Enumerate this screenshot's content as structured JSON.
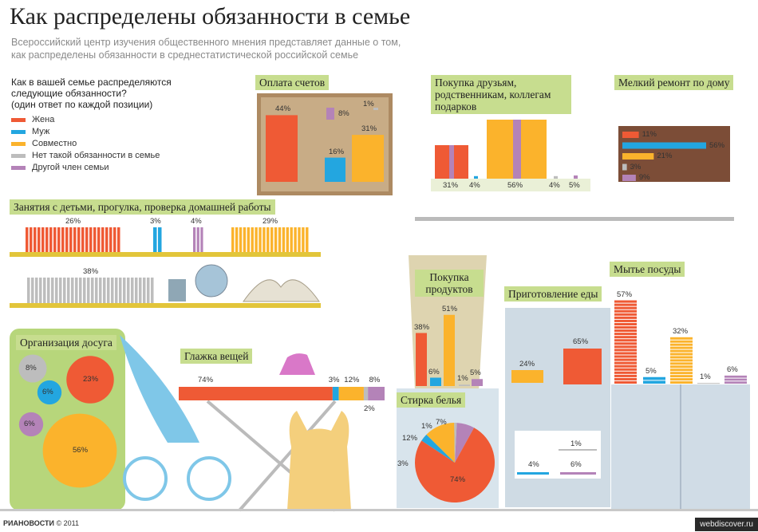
{
  "header": {
    "title": "Как распределены обязанности в семье",
    "subtitle_1": "Всероссийский центр изучения общественного мнения представляет данные о том,",
    "subtitle_2": "как распределены обязанности в среднестатистической российской семье"
  },
  "question": {
    "line1": "Как в вашей семье распределяются",
    "line2": "следующие обязанности?",
    "line3": "(один ответ по каждой позиции)"
  },
  "legend": [
    {
      "label": "Жена",
      "color": "#ef5a35"
    },
    {
      "label": "Муж",
      "color": "#23a6e0"
    },
    {
      "label": "Совместно",
      "color": "#fbb32c"
    },
    {
      "label": "Нет такой обязанности в семье",
      "color": "#bdbdbd"
    },
    {
      "label": "Другой член семьи",
      "color": "#b483b8"
    }
  ],
  "chart_data": [
    {
      "type": "bar",
      "title": "Оплата счетов",
      "series": [
        {
          "name": "Жена",
          "value": 44
        },
        {
          "name": "Муж",
          "value": 16
        },
        {
          "name": "Совместно",
          "value": 31
        },
        {
          "name": "Нет такой обязанности в семье",
          "value": 1
        },
        {
          "name": "Другой член семьи",
          "value": 8
        }
      ],
      "labels": [
        "44%",
        "16%",
        "31%",
        "1%",
        "8%"
      ]
    },
    {
      "type": "bar",
      "title": "Покупка друзьям, родственникам, коллегам подарков",
      "series": [
        {
          "name": "Жена",
          "value": 31
        },
        {
          "name": "Муж",
          "value": 4
        },
        {
          "name": "Совместно",
          "value": 56
        },
        {
          "name": "Нет такой обязанности в семье",
          "value": 4
        },
        {
          "name": "Другой член семьи",
          "value": 5
        }
      ],
      "labels": [
        "31%",
        "4%",
        "56%",
        "4%",
        "5%"
      ]
    },
    {
      "type": "bar",
      "title": "Мелкий ремонт по дому",
      "series": [
        {
          "name": "Жена",
          "value": 11
        },
        {
          "name": "Муж",
          "value": 56
        },
        {
          "name": "Совместно",
          "value": 21
        },
        {
          "name": "Нет такой обязанности в семье",
          "value": 3
        },
        {
          "name": "Другой член семьи",
          "value": 9
        }
      ],
      "labels": [
        "11%",
        "56%",
        "21%",
        "3%",
        "9%"
      ]
    },
    {
      "type": "bar",
      "title": "Занятия с детьми, прогулка, проверка домашней работы",
      "series": [
        {
          "name": "Жена",
          "value": 26
        },
        {
          "name": "Муж",
          "value": 3
        },
        {
          "name": "Другой член семьи",
          "value": 4
        },
        {
          "name": "Совместно",
          "value": 29
        },
        {
          "name": "Нет такой обязанности в семье",
          "value": 38
        }
      ],
      "labels": [
        "26%",
        "3%",
        "4%",
        "29%",
        "38%"
      ]
    },
    {
      "type": "pie",
      "title": "Организация досуга",
      "series": [
        {
          "name": "Жена",
          "value": 23
        },
        {
          "name": "Муж",
          "value": 6
        },
        {
          "name": "Совместно",
          "value": 56
        },
        {
          "name": "Нет такой обязанности в семье",
          "value": 8
        },
        {
          "name": "Другой член семьи",
          "value": 6
        }
      ],
      "labels": [
        "23%",
        "6%",
        "56%",
        "8%",
        "6%"
      ]
    },
    {
      "type": "bar",
      "title": "Глажка вещей",
      "series": [
        {
          "name": "Жена",
          "value": 74
        },
        {
          "name": "Муж",
          "value": 3
        },
        {
          "name": "Совместно",
          "value": 12
        },
        {
          "name": "Нет такой обязанности в семье",
          "value": 2
        },
        {
          "name": "Другой член семьи",
          "value": 8
        }
      ],
      "labels": [
        "74%",
        "3%",
        "12%",
        "2%",
        "8%"
      ]
    },
    {
      "type": "bar",
      "title": "Покупка продуктов",
      "series": [
        {
          "name": "Жена",
          "value": 38
        },
        {
          "name": "Муж",
          "value": 6
        },
        {
          "name": "Совместно",
          "value": 51
        },
        {
          "name": "Нет такой обязанности в семье",
          "value": 1
        },
        {
          "name": "Другой член семьи",
          "value": 5
        }
      ],
      "labels": [
        "38%",
        "6%",
        "51%",
        "1%",
        "5%"
      ]
    },
    {
      "type": "bar",
      "title": "Приготовление еды",
      "series": [
        {
          "name": "Жена",
          "value": 65
        },
        {
          "name": "Муж",
          "value": 4
        },
        {
          "name": "Совместно",
          "value": 24
        },
        {
          "name": "Нет такой обязанности в семье",
          "value": 1
        },
        {
          "name": "Другой член семьи",
          "value": 6
        }
      ],
      "labels": [
        "65%",
        "4%",
        "24%",
        "1%",
        "6%"
      ]
    },
    {
      "type": "bar",
      "title": "Мытье посуды",
      "series": [
        {
          "name": "Жена",
          "value": 57
        },
        {
          "name": "Муж",
          "value": 5
        },
        {
          "name": "Совместно",
          "value": 32
        },
        {
          "name": "Нет такой обязанности в семье",
          "value": 1
        },
        {
          "name": "Другой член семьи",
          "value": 6
        }
      ],
      "labels": [
        "57%",
        "5%",
        "32%",
        "1%",
        "6%"
      ]
    },
    {
      "type": "pie",
      "title": "Стирка белья",
      "series": [
        {
          "name": "Жена",
          "value": 74
        },
        {
          "name": "Муж",
          "value": 3
        },
        {
          "name": "Совместно",
          "value": 12
        },
        {
          "name": "Нет такой обязанности в семье",
          "value": 1
        },
        {
          "name": "Другой член семьи",
          "value": 7
        }
      ],
      "labels": [
        "74%",
        "3%",
        "12%",
        "1%",
        "7%"
      ]
    }
  ],
  "footer": {
    "logo": "РИАНОВОСТИ",
    "copyright": "© 2011",
    "watermark": "webdiscover.ru"
  }
}
